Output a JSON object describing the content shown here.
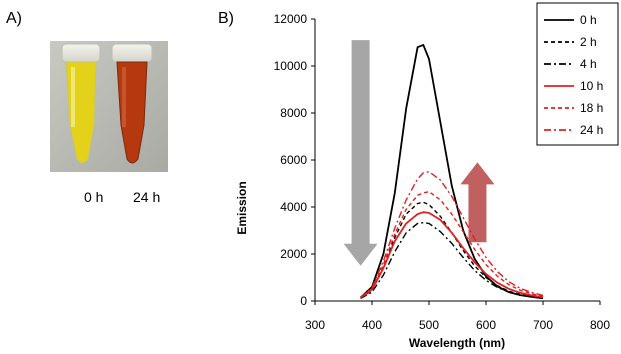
{
  "panels": {
    "a_label": "A)",
    "b_label": "B)"
  },
  "photo": {
    "tube_labels": [
      "0 h",
      "24 h"
    ],
    "tube_colors": [
      "#e4d21a",
      "#b5380f"
    ]
  },
  "chart_data": {
    "type": "line",
    "title": "",
    "xlabel": "Wavelength (nm)",
    "ylabel": "Emission",
    "xlim": [
      300,
      800
    ],
    "ylim": [
      0,
      12000
    ],
    "xticks": [
      300,
      400,
      500,
      600,
      700,
      800
    ],
    "yticks": [
      0,
      2000,
      4000,
      6000,
      8000,
      10000,
      12000
    ],
    "grid": false,
    "legend": "top-right",
    "x": [
      380,
      400,
      420,
      440,
      460,
      480,
      490,
      500,
      520,
      540,
      560,
      580,
      600,
      620,
      640,
      660,
      680,
      700
    ],
    "series": [
      {
        "name": "0 h",
        "color": "#000000",
        "dash": "solid",
        "values": [
          150,
          600,
          2000,
          4600,
          8200,
          10800,
          10900,
          10300,
          7600,
          4900,
          3000,
          1800,
          1050,
          620,
          380,
          250,
          180,
          120
        ]
      },
      {
        "name": "2 h",
        "color": "#000000",
        "dash": "dashed",
        "values": [
          130,
          450,
          1400,
          2700,
          3700,
          4150,
          4200,
          4100,
          3600,
          2900,
          2150,
          1500,
          1000,
          650,
          420,
          280,
          190,
          130
        ]
      },
      {
        "name": "4 h",
        "color": "#000000",
        "dash": "dashdot",
        "values": [
          110,
          380,
          1100,
          2100,
          2900,
          3300,
          3330,
          3300,
          2950,
          2450,
          1850,
          1300,
          880,
          580,
          380,
          250,
          170,
          110
        ]
      },
      {
        "name": "10 h",
        "color": "#e02020",
        "dash": "solid",
        "values": [
          140,
          480,
          1400,
          2550,
          3300,
          3700,
          3780,
          3750,
          3450,
          2900,
          2250,
          1650,
          1150,
          780,
          520,
          350,
          240,
          160
        ]
      },
      {
        "name": "18 h",
        "color": "#e02020",
        "dash": "dashed",
        "values": [
          150,
          520,
          1550,
          2850,
          3900,
          4500,
          4600,
          4650,
          4300,
          3700,
          2950,
          2200,
          1550,
          1050,
          700,
          460,
          310,
          200
        ]
      },
      {
        "name": "24 h",
        "color": "#e02020",
        "dash": "dashdot",
        "values": [
          150,
          560,
          1700,
          3100,
          4300,
          5200,
          5450,
          5500,
          5150,
          4450,
          3550,
          2650,
          1850,
          1250,
          820,
          540,
          360,
          240
        ]
      }
    ],
    "annotations": [
      {
        "type": "arrow-down",
        "color": "#a6a6a6",
        "x_range": [
          375,
          385
        ],
        "y_range": [
          1500,
          11100
        ]
      },
      {
        "type": "arrow-up",
        "color": "#c06060",
        "x_range": [
          580,
          590
        ],
        "y_range": [
          2500,
          5900
        ]
      }
    ]
  }
}
